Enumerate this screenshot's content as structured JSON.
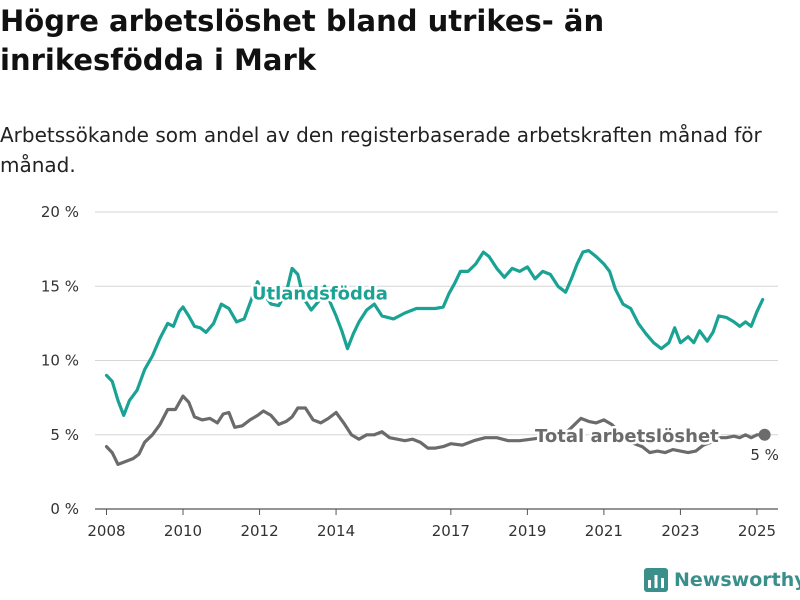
{
  "header": {
    "title": "Högre arbetslöshet bland utrikes- än inrikesfödda i Mark",
    "subtitle": "Arbetssökande som andel av den registerbaserade arbetskraften månad för månad."
  },
  "brand": {
    "name": "Newsworthy",
    "color": "#3a8f8a"
  },
  "chart_data": {
    "type": "line",
    "y_unit": "%",
    "ylim": [
      0,
      20
    ],
    "yticks": [
      0,
      5,
      10,
      15,
      20
    ],
    "ytick_labels": [
      "0 %",
      "5 %",
      "10 %",
      "15 %",
      "20 %"
    ],
    "xlim": [
      2007.7,
      2025.55
    ],
    "xticks": [
      2008,
      2010,
      2012,
      2014,
      2017,
      2019,
      2021,
      2023,
      2025
    ],
    "xtick_labels": [
      "2008",
      "2010",
      "2012",
      "2014",
      "2017",
      "2019",
      "2021",
      "2023",
      "2025"
    ],
    "grid": "horizontal",
    "series": [
      {
        "name": "Utlandsfödda",
        "color": "#1aa394",
        "points": [
          [
            2008.0,
            9.0
          ],
          [
            2008.15,
            8.6
          ],
          [
            2008.3,
            7.3
          ],
          [
            2008.45,
            6.3
          ],
          [
            2008.6,
            7.3
          ],
          [
            2008.8,
            8.0
          ],
          [
            2009.0,
            9.4
          ],
          [
            2009.2,
            10.3
          ],
          [
            2009.4,
            11.5
          ],
          [
            2009.6,
            12.5
          ],
          [
            2009.75,
            12.3
          ],
          [
            2009.9,
            13.3
          ],
          [
            2010.0,
            13.6
          ],
          [
            2010.15,
            13.0
          ],
          [
            2010.3,
            12.3
          ],
          [
            2010.45,
            12.2
          ],
          [
            2010.6,
            11.9
          ],
          [
            2010.8,
            12.5
          ],
          [
            2011.0,
            13.8
          ],
          [
            2011.2,
            13.5
          ],
          [
            2011.4,
            12.6
          ],
          [
            2011.6,
            12.8
          ],
          [
            2011.8,
            14.2
          ],
          [
            2011.95,
            15.3
          ],
          [
            2012.1,
            14.5
          ],
          [
            2012.3,
            13.8
          ],
          [
            2012.5,
            13.7
          ],
          [
            2012.7,
            14.6
          ],
          [
            2012.85,
            16.2
          ],
          [
            2013.0,
            15.8
          ],
          [
            2013.15,
            14.2
          ],
          [
            2013.35,
            13.4
          ],
          [
            2013.55,
            14.0
          ],
          [
            2013.7,
            15.0
          ],
          [
            2013.85,
            13.9
          ],
          [
            2014.0,
            13.0
          ],
          [
            2014.15,
            12.0
          ],
          [
            2014.3,
            10.8
          ],
          [
            2014.45,
            11.8
          ],
          [
            2014.6,
            12.6
          ],
          [
            2014.8,
            13.4
          ],
          [
            2015.0,
            13.8
          ],
          [
            2015.2,
            13.0
          ],
          [
            2015.5,
            12.8
          ],
          [
            2015.8,
            13.2
          ],
          [
            2016.1,
            13.5
          ],
          [
            2016.4,
            13.5
          ],
          [
            2016.6,
            13.5
          ],
          [
            2016.8,
            13.6
          ],
          [
            2016.95,
            14.5
          ],
          [
            2017.1,
            15.2
          ],
          [
            2017.25,
            16.0
          ],
          [
            2017.45,
            16.0
          ],
          [
            2017.65,
            16.5
          ],
          [
            2017.85,
            17.3
          ],
          [
            2018.0,
            17.0
          ],
          [
            2018.2,
            16.2
          ],
          [
            2018.4,
            15.6
          ],
          [
            2018.6,
            16.2
          ],
          [
            2018.8,
            16.0
          ],
          [
            2019.0,
            16.3
          ],
          [
            2019.2,
            15.5
          ],
          [
            2019.4,
            16.0
          ],
          [
            2019.6,
            15.8
          ],
          [
            2019.8,
            15.0
          ],
          [
            2020.0,
            14.6
          ],
          [
            2020.15,
            15.5
          ],
          [
            2020.3,
            16.5
          ],
          [
            2020.45,
            17.3
          ],
          [
            2020.6,
            17.4
          ],
          [
            2020.8,
            17.0
          ],
          [
            2021.0,
            16.5
          ],
          [
            2021.15,
            16.0
          ],
          [
            2021.3,
            14.8
          ],
          [
            2021.5,
            13.8
          ],
          [
            2021.7,
            13.5
          ],
          [
            2021.9,
            12.5
          ],
          [
            2022.1,
            11.8
          ],
          [
            2022.3,
            11.2
          ],
          [
            2022.5,
            10.8
          ],
          [
            2022.7,
            11.2
          ],
          [
            2022.85,
            12.2
          ],
          [
            2023.0,
            11.2
          ],
          [
            2023.2,
            11.6
          ],
          [
            2023.35,
            11.2
          ],
          [
            2023.5,
            12.0
          ],
          [
            2023.7,
            11.3
          ],
          [
            2023.85,
            11.9
          ],
          [
            2024.0,
            13.0
          ],
          [
            2024.2,
            12.9
          ],
          [
            2024.4,
            12.6
          ],
          [
            2024.55,
            12.3
          ],
          [
            2024.7,
            12.6
          ],
          [
            2024.85,
            12.3
          ],
          [
            2025.0,
            13.3
          ],
          [
            2025.15,
            14.1
          ]
        ],
        "label": {
          "text": "Utlandsfödda",
          "x": 2011.8,
          "y": 14.1
        }
      },
      {
        "name": "Total arbetslöshet",
        "color": "#6b6b6b",
        "points": [
          [
            2008.0,
            4.2
          ],
          [
            2008.15,
            3.8
          ],
          [
            2008.3,
            3.0
          ],
          [
            2008.5,
            3.2
          ],
          [
            2008.7,
            3.4
          ],
          [
            2008.85,
            3.7
          ],
          [
            2009.0,
            4.5
          ],
          [
            2009.2,
            5.0
          ],
          [
            2009.4,
            5.7
          ],
          [
            2009.6,
            6.7
          ],
          [
            2009.8,
            6.7
          ],
          [
            2010.0,
            7.6
          ],
          [
            2010.15,
            7.2
          ],
          [
            2010.3,
            6.2
          ],
          [
            2010.5,
            6.0
          ],
          [
            2010.7,
            6.1
          ],
          [
            2010.9,
            5.8
          ],
          [
            2011.05,
            6.4
          ],
          [
            2011.2,
            6.5
          ],
          [
            2011.35,
            5.5
          ],
          [
            2011.55,
            5.6
          ],
          [
            2011.75,
            6.0
          ],
          [
            2011.95,
            6.3
          ],
          [
            2012.1,
            6.6
          ],
          [
            2012.3,
            6.3
          ],
          [
            2012.5,
            5.7
          ],
          [
            2012.7,
            5.9
          ],
          [
            2012.85,
            6.2
          ],
          [
            2013.0,
            6.8
          ],
          [
            2013.2,
            6.8
          ],
          [
            2013.4,
            6.0
          ],
          [
            2013.6,
            5.8
          ],
          [
            2013.8,
            6.1
          ],
          [
            2014.0,
            6.5
          ],
          [
            2014.2,
            5.8
          ],
          [
            2014.4,
            5.0
          ],
          [
            2014.6,
            4.7
          ],
          [
            2014.8,
            5.0
          ],
          [
            2015.0,
            5.0
          ],
          [
            2015.2,
            5.2
          ],
          [
            2015.4,
            4.8
          ],
          [
            2015.6,
            4.7
          ],
          [
            2015.8,
            4.6
          ],
          [
            2016.0,
            4.7
          ],
          [
            2016.2,
            4.5
          ],
          [
            2016.4,
            4.1
          ],
          [
            2016.6,
            4.1
          ],
          [
            2016.8,
            4.2
          ],
          [
            2017.0,
            4.4
          ],
          [
            2017.3,
            4.3
          ],
          [
            2017.6,
            4.6
          ],
          [
            2017.9,
            4.8
          ],
          [
            2018.2,
            4.8
          ],
          [
            2018.5,
            4.6
          ],
          [
            2018.8,
            4.6
          ],
          [
            2019.1,
            4.7
          ],
          [
            2019.4,
            4.8
          ],
          [
            2019.7,
            5.2
          ],
          [
            2020.0,
            5.1
          ],
          [
            2020.2,
            5.6
          ],
          [
            2020.4,
            6.1
          ],
          [
            2020.6,
            5.9
          ],
          [
            2020.8,
            5.8
          ],
          [
            2021.0,
            6.0
          ],
          [
            2021.2,
            5.7
          ],
          [
            2021.4,
            5.2
          ],
          [
            2021.6,
            4.6
          ],
          [
            2021.8,
            4.4
          ],
          [
            2022.0,
            4.2
          ],
          [
            2022.2,
            3.8
          ],
          [
            2022.4,
            3.9
          ],
          [
            2022.6,
            3.8
          ],
          [
            2022.8,
            4.0
          ],
          [
            2023.0,
            3.9
          ],
          [
            2023.2,
            3.8
          ],
          [
            2023.4,
            3.9
          ],
          [
            2023.6,
            4.3
          ],
          [
            2023.8,
            4.5
          ],
          [
            2024.0,
            4.8
          ],
          [
            2024.2,
            4.8
          ],
          [
            2024.4,
            4.9
          ],
          [
            2024.55,
            4.8
          ],
          [
            2024.7,
            5.0
          ],
          [
            2024.85,
            4.8
          ],
          [
            2025.0,
            5.0
          ],
          [
            2025.2,
            5.0
          ]
        ],
        "label": {
          "text": "Total arbetslöshet",
          "x": 2019.2,
          "y": 4.5
        },
        "end_label": "5 %"
      }
    ]
  }
}
